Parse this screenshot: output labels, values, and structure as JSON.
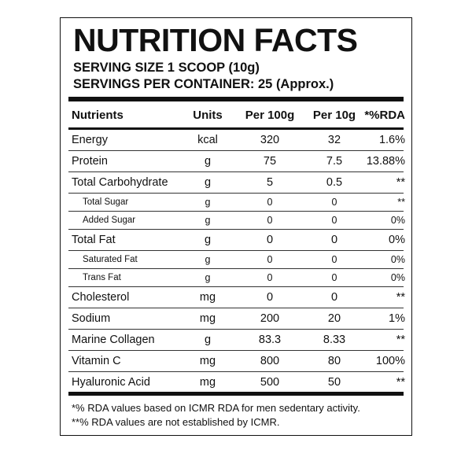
{
  "label": {
    "title": "NUTRITION FACTS",
    "serving_size": "SERVING SIZE 1 SCOOP (10g)",
    "servings_per_container": "SERVINGS PER CONTAINER: 25 (Approx.)"
  },
  "table": {
    "headers": [
      "Nutrients",
      "Units",
      "Per 100g",
      "Per 10g",
      "*%RDA"
    ],
    "rows": [
      {
        "name": "Energy",
        "units": "kcal",
        "per100": "320",
        "per10": "32",
        "rda": "1.6%",
        "sub": false
      },
      {
        "name": "Protein",
        "units": "g",
        "per100": "75",
        "per10": "7.5",
        "rda": "13.88%",
        "sub": false
      },
      {
        "name": "Total Carbohydrate",
        "units": "g",
        "per100": "5",
        "per10": "0.5",
        "rda": "**",
        "sub": false
      },
      {
        "name": "Total Sugar",
        "units": "g",
        "per100": "0",
        "per10": "0",
        "rda": "**",
        "sub": true
      },
      {
        "name": "Added Sugar",
        "units": "g",
        "per100": "0",
        "per10": "0",
        "rda": "0%",
        "sub": true
      },
      {
        "name": "Total Fat",
        "units": "g",
        "per100": "0",
        "per10": "0",
        "rda": "0%",
        "sub": false
      },
      {
        "name": "Saturated Fat",
        "units": "g",
        "per100": "0",
        "per10": "0",
        "rda": "0%",
        "sub": true
      },
      {
        "name": "Trans Fat",
        "units": "g",
        "per100": "0",
        "per10": "0",
        "rda": "0%",
        "sub": true
      },
      {
        "name": "Cholesterol",
        "units": "mg",
        "per100": "0",
        "per10": "0",
        "rda": "**",
        "sub": false
      },
      {
        "name": "Sodium",
        "units": "mg",
        "per100": "200",
        "per10": "20",
        "rda": "1%",
        "sub": false
      },
      {
        "name": "Marine Collagen",
        "units": "g",
        "per100": "83.3",
        "per10": "8.33",
        "rda": "**",
        "sub": false
      },
      {
        "name": "Vitamin C",
        "units": "mg",
        "per100": "800",
        "per10": "80",
        "rda": "100%",
        "sub": false
      },
      {
        "name": "Hyaluronic Acid",
        "units": "mg",
        "per100": "500",
        "per10": "50",
        "rda": "**",
        "sub": false
      }
    ]
  },
  "footnotes": {
    "note1": "*% RDA values based on ICMR RDA for men sedentary activity.",
    "note2": "**% RDA values are not established by ICMR."
  }
}
